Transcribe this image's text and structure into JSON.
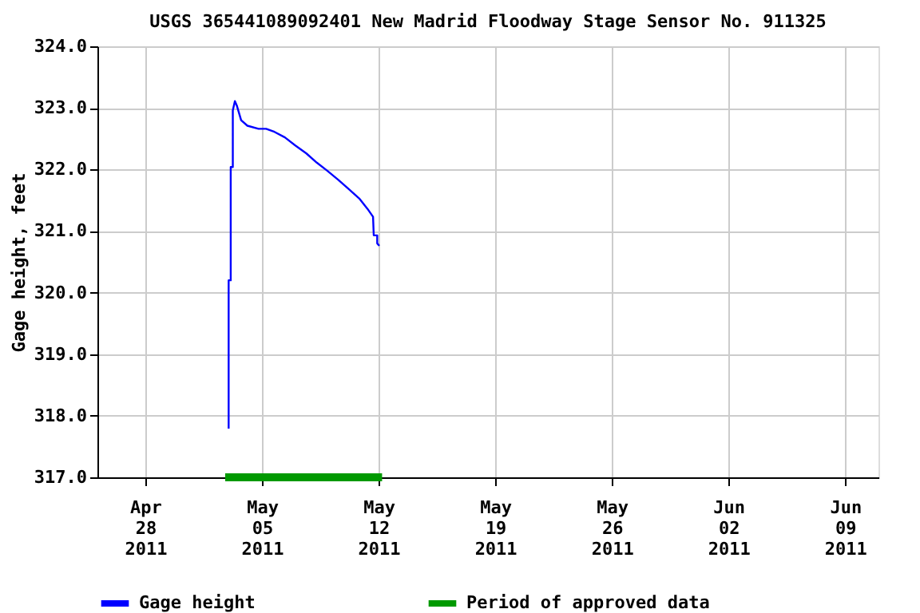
{
  "chart_data": {
    "type": "line",
    "title": "USGS 365441089092401 New Madrid Floodway Stage Sensor No. 911325",
    "ylabel": "Gage height, feet",
    "xlim": [
      "2011-04-25T03:00",
      "2011-06-11T00:00"
    ],
    "xticks": [
      {
        "value": "2011-04-28",
        "label": "Apr 28 2011"
      },
      {
        "value": "2011-05-05",
        "label": "May 05 2011"
      },
      {
        "value": "2011-05-12",
        "label": "May 12 2011"
      },
      {
        "value": "2011-05-19",
        "label": "May 19 2011"
      },
      {
        "value": "2011-05-26",
        "label": "May 26 2011"
      },
      {
        "value": "2011-06-02",
        "label": "Jun 02 2011"
      },
      {
        "value": "2011-06-09",
        "label": "Jun 09 2011"
      }
    ],
    "ylim": [
      317,
      324
    ],
    "yticks": [
      {
        "value": 317,
        "label": "317.0"
      },
      {
        "value": 318,
        "label": "318.0"
      },
      {
        "value": 319,
        "label": "319.0"
      },
      {
        "value": 320,
        "label": "320.0"
      },
      {
        "value": 321,
        "label": "321.0"
      },
      {
        "value": 322,
        "label": "322.0"
      },
      {
        "value": 323,
        "label": "323.0"
      },
      {
        "value": 324,
        "label": "324.0"
      }
    ],
    "grid": true,
    "legend": "bottom",
    "line_style": "solid",
    "series": [
      {
        "name": "Gage height",
        "color": "#0000ff",
        "x": [
          "2011-05-03T00:00",
          "2011-05-03T00:00",
          "2011-05-03T03:00",
          "2011-05-03T03:00",
          "2011-05-03T06:00",
          "2011-05-03T06:00",
          "2011-05-03T09:00",
          "2011-05-03T12:00",
          "2011-05-03T18:00",
          "2011-05-04T03:00",
          "2011-05-04T19:00",
          "2011-05-05T06:00",
          "2011-05-05T18:00",
          "2011-05-06T09:00",
          "2011-05-07T00:00",
          "2011-05-07T16:00",
          "2011-05-08T07:00",
          "2011-05-08T22:00",
          "2011-05-09T14:00",
          "2011-05-10T05:00",
          "2011-05-10T20:00",
          "2011-05-11T08:00",
          "2011-05-11T16:00",
          "2011-05-11T17:00",
          "2011-05-11T22:00",
          "2011-05-11T22:00",
          "2011-05-12T01:00"
        ],
        "values": [
          317.79,
          320.2,
          320.2,
          322.04,
          322.04,
          322.96,
          323.11,
          323.03,
          322.8,
          322.71,
          322.66,
          322.66,
          322.61,
          322.52,
          322.39,
          322.26,
          322.11,
          321.98,
          321.83,
          321.68,
          321.53,
          321.36,
          321.23,
          320.93,
          320.93,
          320.8,
          320.76
        ]
      },
      {
        "name": "Period of approved data",
        "color": "#009900",
        "type": "line",
        "x": [
          "2011-05-02T19:00",
          "2011-05-12T05:00"
        ],
        "values": [
          317,
          317
        ]
      }
    ]
  }
}
